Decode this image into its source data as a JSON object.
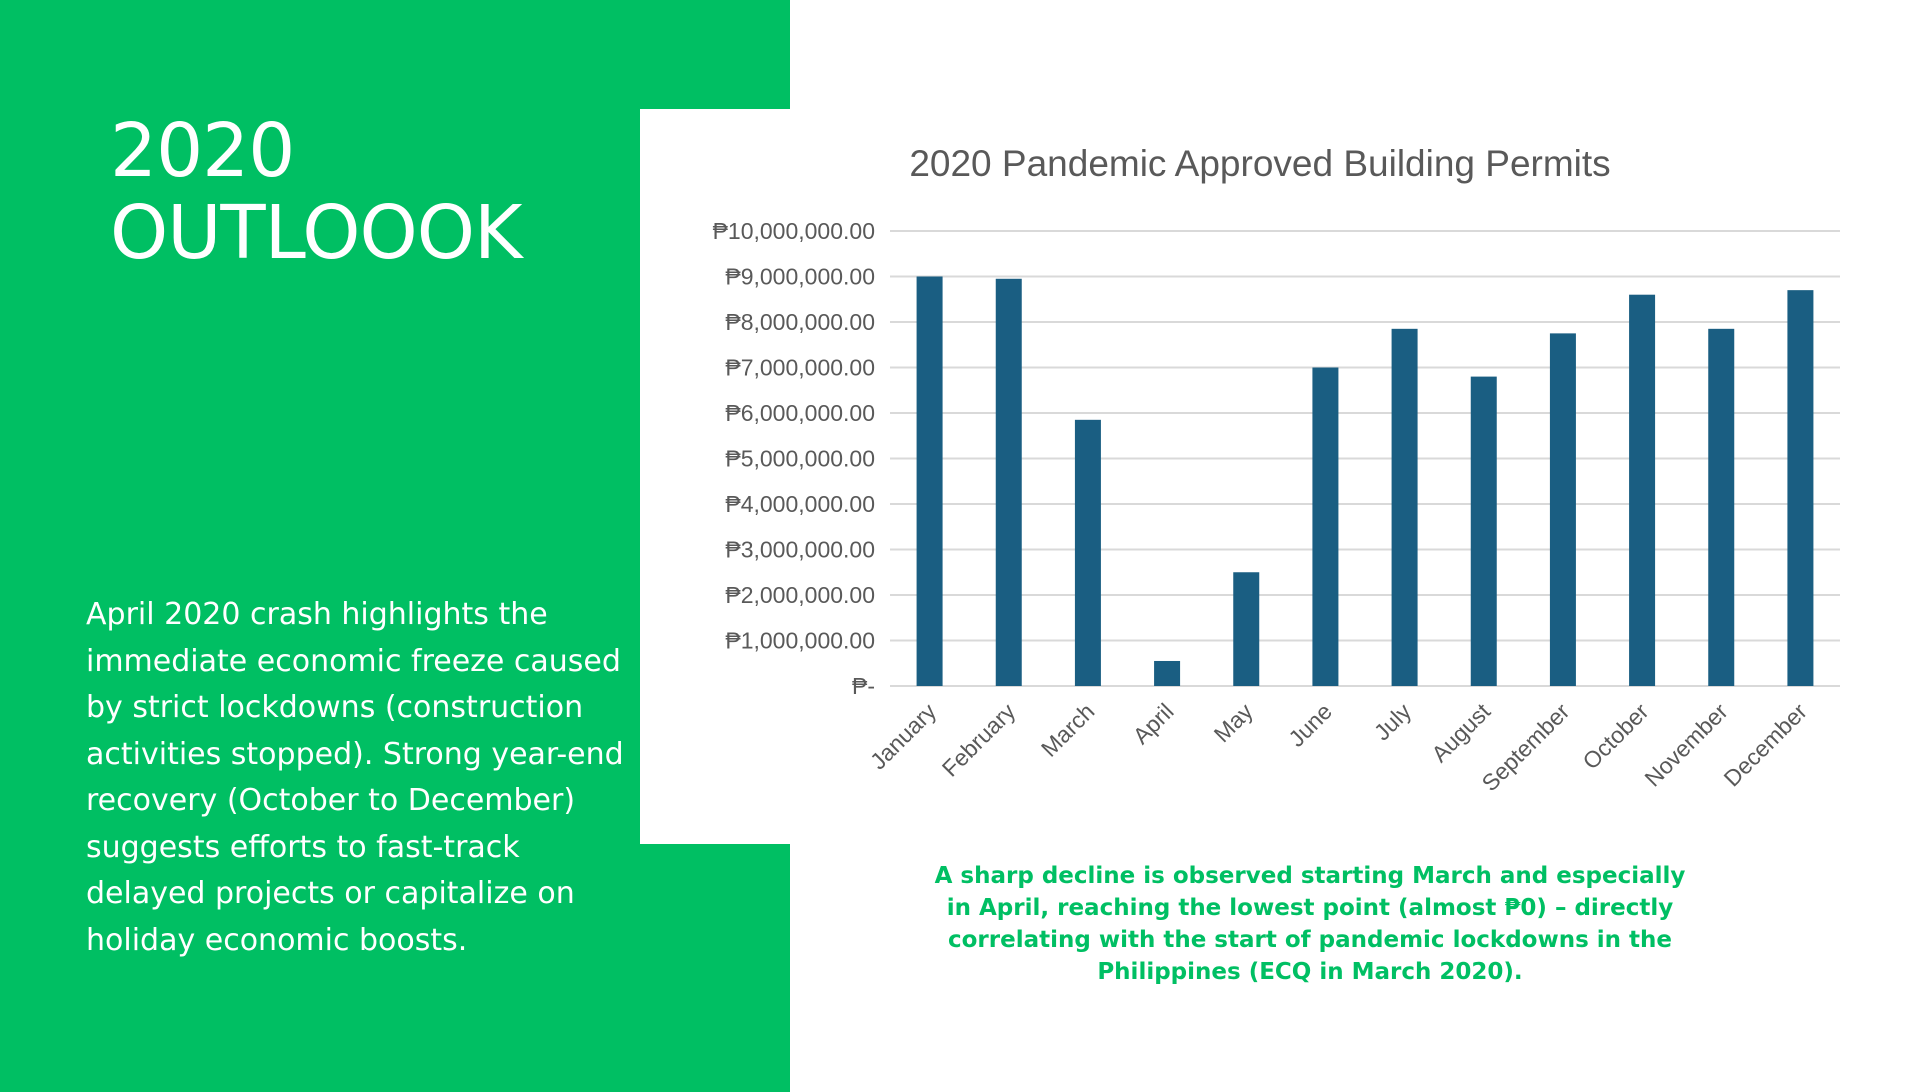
{
  "slide": {
    "title_line1": "2020",
    "title_line2": "OUTLOOOK",
    "body": "April 2020 crash highlights the immediate economic freeze caused by strict lockdowns (construction activities stopped). Strong year-end recovery (October to December) suggests efforts to fast-track delayed projects or capitalize on holiday economic boosts.",
    "caption": "A sharp decline is observed starting March and especially in April, reaching the lowest point (almost ₱0) – directly correlating with the start of pandemic lockdowns in the Philippines (ECQ in March 2020).",
    "colors": {
      "accent_green": "#00bf63",
      "bar": "#1a5e82",
      "grid": "#d9d9d9",
      "axis_text": "#595959"
    }
  },
  "chart_data": {
    "type": "bar",
    "title": "2020 Pandemic Approved Building Permits",
    "xlabel": "",
    "ylabel": "",
    "ylim": [
      0,
      10000000
    ],
    "yticks": [
      0,
      1000000,
      2000000,
      3000000,
      4000000,
      5000000,
      6000000,
      7000000,
      8000000,
      9000000,
      10000000
    ],
    "ytick_labels": [
      "₱-",
      "₱1,000,000.00",
      "₱2,000,000.00",
      "₱3,000,000.00",
      "₱4,000,000.00",
      "₱5,000,000.00",
      "₱6,000,000.00",
      "₱7,000,000.00",
      "₱8,000,000.00",
      "₱9,000,000.00",
      "₱10,000,000.00"
    ],
    "categories": [
      "January",
      "February",
      "March",
      "April",
      "May",
      "June",
      "July",
      "August",
      "September",
      "October",
      "November",
      "December"
    ],
    "values": [
      9000000,
      8950000,
      5850000,
      550000,
      2500000,
      7000000,
      7850000,
      6800000,
      7750000,
      8600000,
      7850000,
      8700000
    ],
    "grid": true,
    "legend": "none"
  }
}
